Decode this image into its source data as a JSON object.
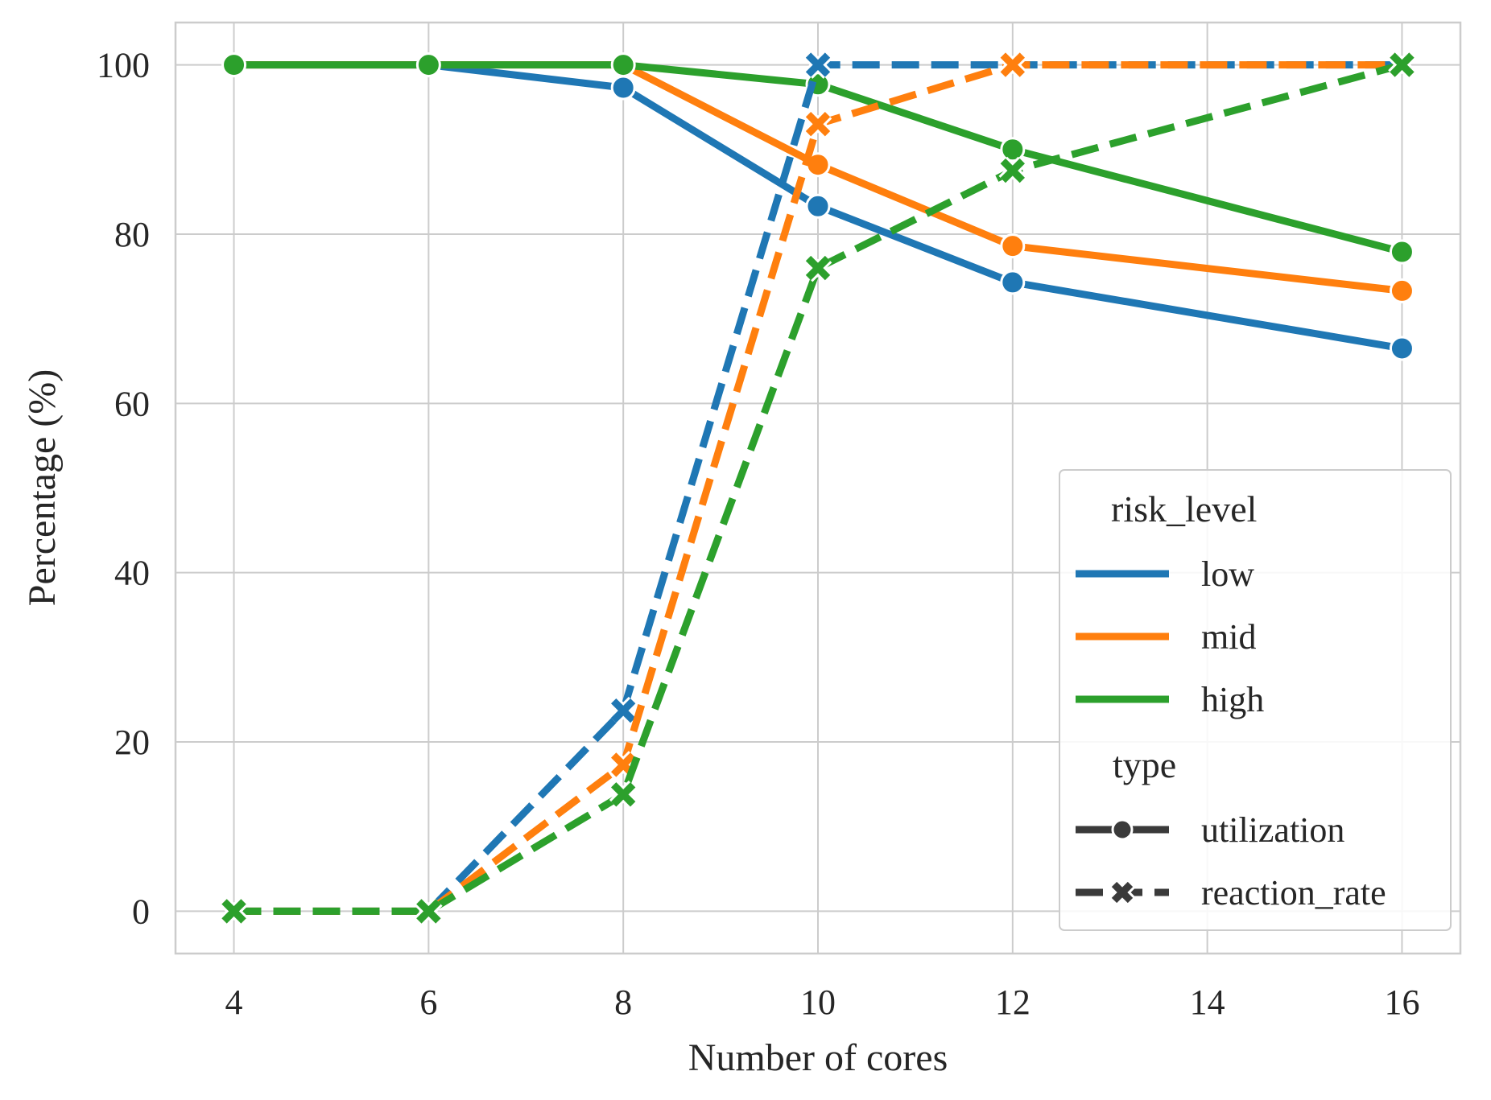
{
  "chart_data": {
    "type": "line",
    "xlabel": "Number of cores",
    "ylabel": "Percentage (%)",
    "xlim": [
      3.4,
      16.6
    ],
    "ylim": [
      -5,
      105
    ],
    "xticks": [
      4,
      6,
      8,
      10,
      12,
      14,
      16
    ],
    "yticks": [
      0,
      20,
      40,
      60,
      80,
      100
    ],
    "grid": true,
    "legend_position": "lower right",
    "legend": {
      "hue_title": "risk_level",
      "hue_items": [
        {
          "label": "low",
          "color": "#1f77b4"
        },
        {
          "label": "mid",
          "color": "#ff7f0e"
        },
        {
          "label": "high",
          "color": "#2ca02c"
        }
      ],
      "style_title": "type",
      "style_items": [
        {
          "label": "utilization",
          "dash": "solid",
          "marker": "circle"
        },
        {
          "label": "reaction_rate",
          "dash": "dashed",
          "marker": "x"
        }
      ]
    },
    "x": [
      4,
      6,
      8,
      10,
      12,
      16
    ],
    "series": [
      {
        "name": "low",
        "type": "utilization",
        "color": "#1f77b4",
        "values": [
          100,
          100,
          97.3,
          83.3,
          74.3,
          66.5
        ]
      },
      {
        "name": "mid",
        "type": "utilization",
        "color": "#ff7f0e",
        "values": [
          100,
          100,
          100,
          88.2,
          78.6,
          73.3
        ]
      },
      {
        "name": "high",
        "type": "utilization",
        "color": "#2ca02c",
        "values": [
          100,
          100,
          100,
          97.7,
          90.0,
          77.9
        ]
      },
      {
        "name": "low",
        "type": "reaction_rate",
        "color": "#1f77b4",
        "values": [
          0,
          0,
          23.7,
          100,
          100,
          100
        ]
      },
      {
        "name": "mid",
        "type": "reaction_rate",
        "color": "#ff7f0e",
        "values": [
          0,
          0,
          17.3,
          93.0,
          100,
          100
        ]
      },
      {
        "name": "high",
        "type": "reaction_rate",
        "color": "#2ca02c",
        "values": [
          0,
          0,
          13.8,
          76.0,
          87.5,
          100
        ]
      }
    ]
  }
}
